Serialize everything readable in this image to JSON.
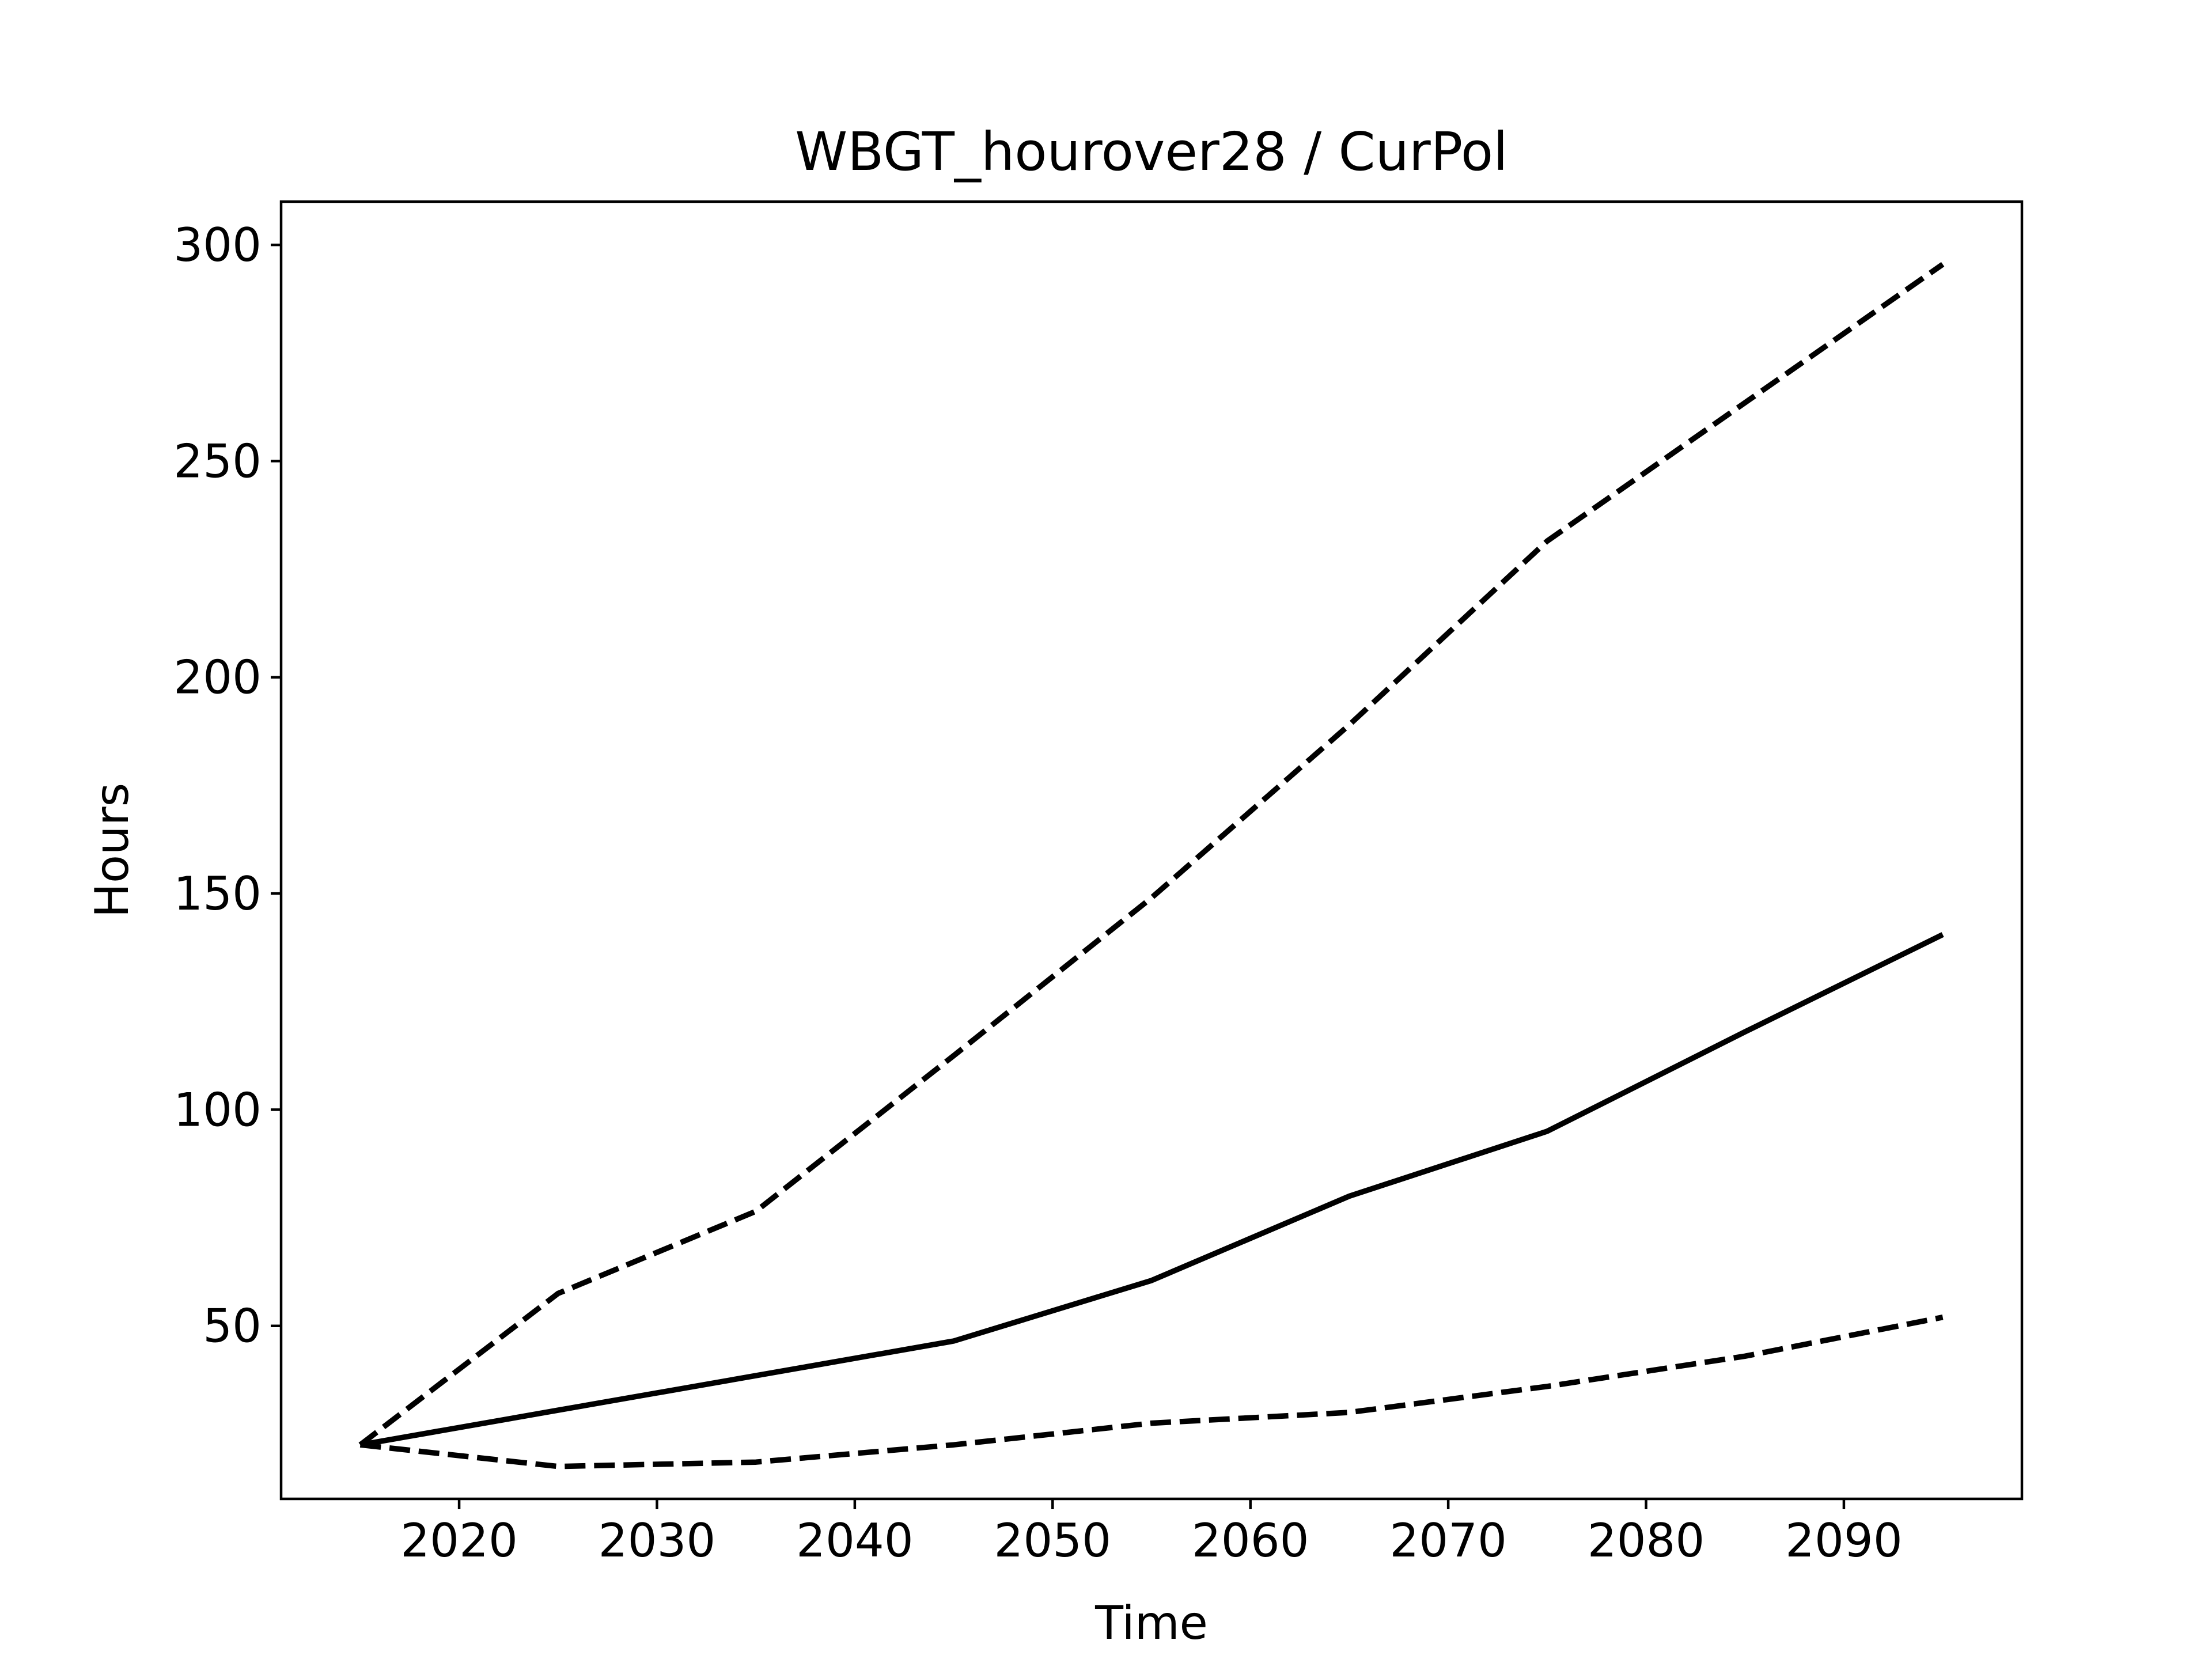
{
  "chart_data": {
    "type": "line",
    "title": "WBGT_hourover28 / CurPol",
    "xlabel": "Time",
    "ylabel": "Hours",
    "xlim": [
      2011,
      2099
    ],
    "ylim": [
      10,
      310
    ],
    "xticks": [
      2020,
      2030,
      2040,
      2050,
      2060,
      2070,
      2080,
      2090
    ],
    "yticks": [
      50,
      100,
      150,
      200,
      250,
      300
    ],
    "grid": false,
    "x": [
      2015,
      2025,
      2035,
      2045,
      2055,
      2065,
      2075,
      2085,
      2095
    ],
    "series": [
      {
        "style": "solid",
        "color": "#000000",
        "values": [
          22.5,
          30.5,
          38.5,
          46.5,
          60.5,
          80,
          95,
          118,
          140.5
        ]
      },
      {
        "style": "dashed",
        "color": "#000000",
        "values": [
          22.5,
          57.5,
          76.5,
          112.5,
          149,
          189,
          231.5,
          263.5,
          295.5
        ]
      },
      {
        "style": "dashed",
        "color": "#000000",
        "values": [
          22.5,
          17.5,
          18.5,
          22.5,
          27.5,
          30,
          36,
          43,
          52
        ]
      }
    ]
  }
}
